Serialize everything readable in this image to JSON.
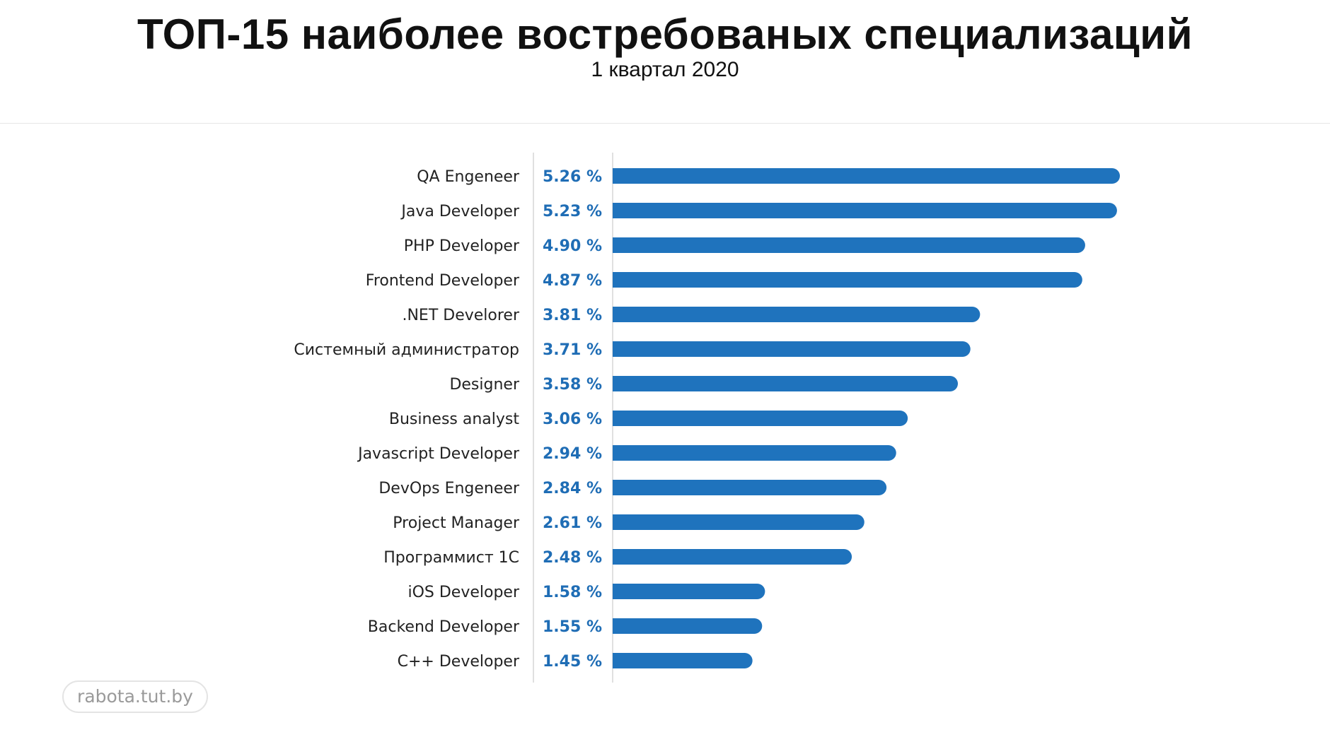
{
  "header": {
    "title": "ТОП-15 наиболее востребованых специализаций",
    "subtitle": "1 квартал 2020"
  },
  "watermark": {
    "text": "rabota.tut.by"
  },
  "colors": {
    "bar": "#1f73bd",
    "value_text": "#1f6db5",
    "axis": "#e0e0e0"
  },
  "chart_data": {
    "type": "bar",
    "orientation": "horizontal",
    "title": "ТОП-15 наиболее востребованых специализаций",
    "subtitle": "1 квартал 2020",
    "xlabel": "",
    "ylabel": "",
    "unit": "%",
    "xlim": [
      0,
      5.26
    ],
    "grid": false,
    "categories": [
      "QA Engeneer",
      "Java Developer",
      "PHP Developer",
      "Frontend Developer",
      ".NET Develorer",
      "Системный администратор",
      "Designer",
      "Business analyst",
      "Javascript Developer",
      "DevOps Engeneer",
      "Project Manager",
      "Программист 1С",
      "iOS Developer",
      "Backend Developer",
      "C++ Developer"
    ],
    "values": [
      5.26,
      5.23,
      4.9,
      4.87,
      3.81,
      3.71,
      3.58,
      3.06,
      2.94,
      2.84,
      2.61,
      2.48,
      1.58,
      1.55,
      1.45
    ],
    "value_labels": [
      "5.26 %",
      "5.23 %",
      "4.90 %",
      "4.87 %",
      "3.81 %",
      "3.71 %",
      "3.58 %",
      "3.06 %",
      "2.94 %",
      "2.84 %",
      "2.61 %",
      "2.48 %",
      "1.58 %",
      "1.55 %",
      "1.45 %"
    ]
  }
}
